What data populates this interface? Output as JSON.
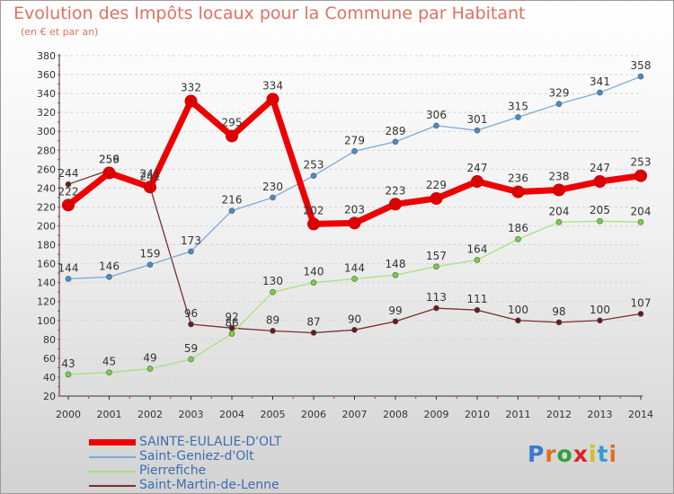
{
  "header": {
    "title": "Evolution des Impôts locaux pour la Commune par Habitant",
    "subtitle": "(en € et par an)"
  },
  "brand": {
    "logo_text": "Proxiti"
  },
  "chart_data": {
    "type": "line",
    "title": "Evolution des Impôts locaux pour la Commune par Habitant",
    "subtitle": "(en € et par an)",
    "xlabel": "",
    "ylabel": "",
    "ylim": [
      20,
      380
    ],
    "yticks": [
      20,
      40,
      60,
      80,
      100,
      120,
      140,
      160,
      180,
      200,
      220,
      240,
      260,
      280,
      300,
      320,
      340,
      360,
      380
    ],
    "x": [
      "2000",
      "2001",
      "2002",
      "2003",
      "2004",
      "2005",
      "2006",
      "2007",
      "2008",
      "2009",
      "2010",
      "2011",
      "2012",
      "2013",
      "2014"
    ],
    "grid": "horizontal",
    "legend_position": "bottom-left",
    "series": [
      {
        "name": "Saint-Martin-de-Lenne",
        "color": "#7a2e2e",
        "marker": "#6a1a1a",
        "width": 1.3,
        "values": [
          244,
          259,
          241,
          96,
          92,
          89,
          87,
          90,
          99,
          113,
          111,
          100,
          98,
          100,
          107
        ]
      },
      {
        "name": "Pierrefiche",
        "color": "#a8e080",
        "marker": "#78d040",
        "width": 1.3,
        "values": [
          43,
          45,
          49,
          59,
          86,
          130,
          140,
          144,
          148,
          157,
          164,
          186,
          204,
          205,
          204
        ]
      },
      {
        "name": "Saint-Geniez-d'Olt",
        "color": "#7aaad8",
        "marker": "#4a8ad0",
        "width": 1.3,
        "values": [
          144,
          146,
          159,
          173,
          216,
          230,
          253,
          279,
          289,
          306,
          301,
          315,
          329,
          341,
          358
        ]
      },
      {
        "name": "SAINTE-EULALIE-D'OLT",
        "color": "#ee0000",
        "marker": "#dd0000",
        "width": 7,
        "values": [
          222,
          256,
          241,
          332,
          295,
          334,
          202,
          203,
          223,
          229,
          247,
          236,
          238,
          247,
          253
        ]
      }
    ]
  },
  "legend": {
    "items": [
      {
        "label": "SAINTE-EULALIE-D'OLT",
        "color": "#ee0000"
      },
      {
        "label": "Saint-Geniez-d'Olt",
        "color": "#7aaad8"
      },
      {
        "label": "Pierrefiche",
        "color": "#a8e080"
      },
      {
        "label": "Saint-Martin-de-Lenne",
        "color": "#7a2e2e"
      }
    ]
  }
}
